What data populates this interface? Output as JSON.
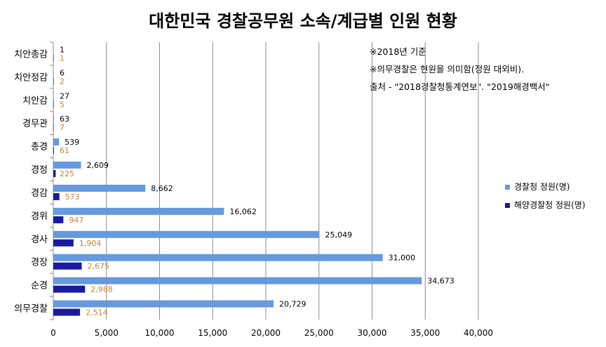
{
  "chart_data": {
    "type": "bar",
    "orientation": "horizontal",
    "title": "대한민국 경찰공무원 소속/계급별 인원 현황",
    "notes": [
      "※2018년 기준",
      "※의무경찰은 현원을 의미함(정원 대외비).",
      "출처 - \"2018경찰청통계연보\". \"2019해경백서\""
    ],
    "categories": [
      "치안총감",
      "치안정감",
      "치안감",
      "경무관",
      "총경",
      "경정",
      "경감",
      "경위",
      "경사",
      "경장",
      "순경",
      "의무경찰"
    ],
    "series": [
      {
        "name": "경찰청 정원(명)",
        "color": "#6699dd",
        "label_color": "#000000",
        "values": [
          1,
          6,
          27,
          63,
          539,
          2609,
          8662,
          16062,
          25049,
          31000,
          34673,
          20729
        ],
        "labels": [
          "1",
          "6",
          "27",
          "63",
          "539",
          "2,609",
          "8,662",
          "16,062",
          "25,049",
          "31,000",
          "34,673",
          "20,729"
        ]
      },
      {
        "name": "해양경찰청 정원(명)",
        "color": "#1a1aa0",
        "label_color": "#d08030",
        "values": [
          1,
          2,
          5,
          7,
          61,
          225,
          573,
          947,
          1904,
          2675,
          2988,
          2514
        ],
        "labels": [
          "1",
          "2",
          "5",
          "7",
          "61",
          "225",
          "573",
          "947",
          "1,904",
          "2,675",
          "2,988",
          "2,514"
        ]
      }
    ],
    "xlim": [
      0,
      40000
    ],
    "xticks": [
      0,
      5000,
      10000,
      15000,
      20000,
      25000,
      30000,
      35000,
      40000
    ],
    "xtick_labels": [
      "0",
      "5,000",
      "10,000",
      "15,000",
      "20,000",
      "25,000",
      "30,000",
      "35,000",
      "40,000"
    ],
    "grid": "vertical",
    "legend_position": "right"
  }
}
